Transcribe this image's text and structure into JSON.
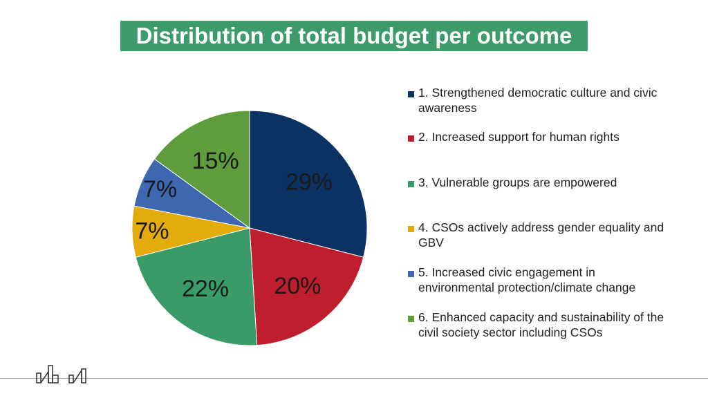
{
  "title": "Distribution of total budget per outcome",
  "chart_data": {
    "type": "pie",
    "title": "Distribution of total budget per outcome",
    "slices": [
      {
        "label": "1. Strengthened democratic culture and civic awareness",
        "value": 29,
        "display": "29%",
        "color": "#0c3263"
      },
      {
        "label": "2. Increased support for human rights",
        "value": 20,
        "display": "20%",
        "color": "#be1e2d"
      },
      {
        "label": "3. Vulnerable groups are empowered",
        "value": 22,
        "display": "22%",
        "color": "#3a9a68"
      },
      {
        "label": "4. CSOs actively address gender equality and GBV",
        "value": 7,
        "display": "7%",
        "color": "#e3ab0b"
      },
      {
        "label": "5. Increased civic engagement in environmental protection/climate change",
        "value": 7,
        "display": "7%",
        "color": "#3e67b0"
      },
      {
        "label": "6. Enhanced capacity and sustainability of the civil society sector including CSOs",
        "value": 15,
        "display": "15%",
        "color": "#5f9c3e"
      }
    ],
    "legend_position": "right"
  },
  "colors": {
    "title_background": "#3d9b6b",
    "title_text": "#ffffff"
  }
}
